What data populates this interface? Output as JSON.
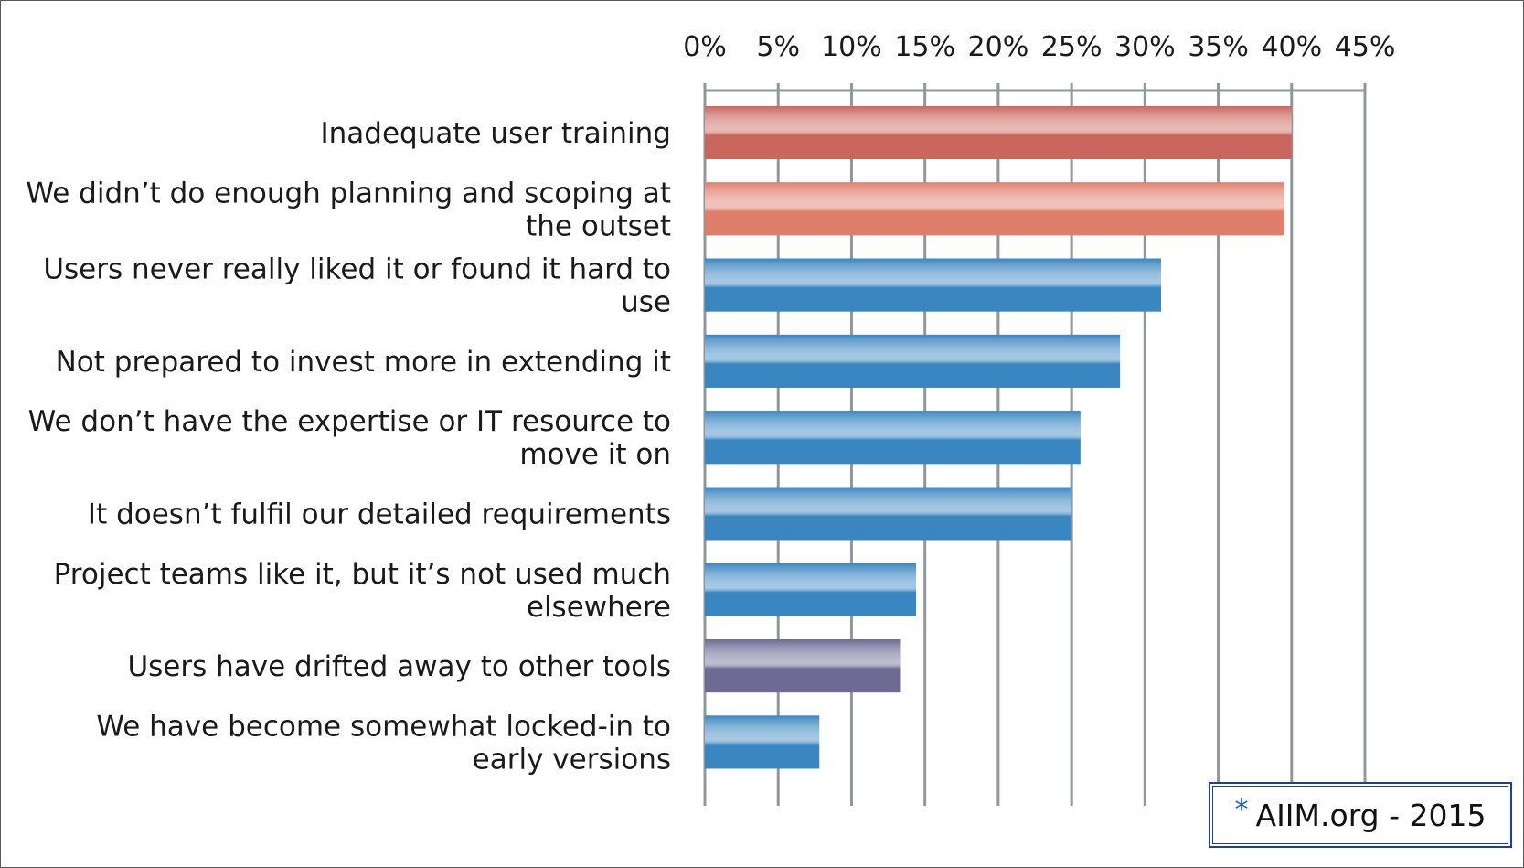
{
  "chart_data": {
    "type": "bar",
    "orientation": "horizontal",
    "title": "",
    "xlabel": "",
    "ylabel": "",
    "xlim": [
      0,
      45
    ],
    "x_ticks": [
      "0%",
      "5%",
      "10%",
      "15%",
      "20%",
      "25%",
      "30%",
      "35%",
      "40%",
      "45%"
    ],
    "x_axis_position": "top",
    "grid": true,
    "categories": [
      [
        "Inadequate user training"
      ],
      [
        "We didn’t do enough planning and scoping at",
        "the outset"
      ],
      [
        "Users never really liked it or found it hard to",
        "use"
      ],
      [
        "Not prepared to invest more in extending it"
      ],
      [
        "We don’t have the expertise or IT resource to",
        "move it on"
      ],
      [
        "It doesn’t fulfil our detailed requirements"
      ],
      [
        "Project teams like it, but it’s not used much",
        "elsewhere"
      ],
      [
        "Users have drifted away to other tools"
      ],
      [
        "We have become somewhat locked-in to",
        "early versions"
      ]
    ],
    "values": [
      40.0,
      39.5,
      31.1,
      28.3,
      25.6,
      25.0,
      14.4,
      13.3,
      7.8
    ],
    "bar_colors": [
      "#c9675e",
      "#e07e6c",
      "#3a86c0",
      "#3a86c0",
      "#3a86c0",
      "#3a86c0",
      "#3a86c0",
      "#6f6a94",
      "#3a86c0"
    ],
    "grid_color": "#8f979c"
  },
  "credit": {
    "star": "*",
    "text": "AIIM.org - 2015"
  }
}
